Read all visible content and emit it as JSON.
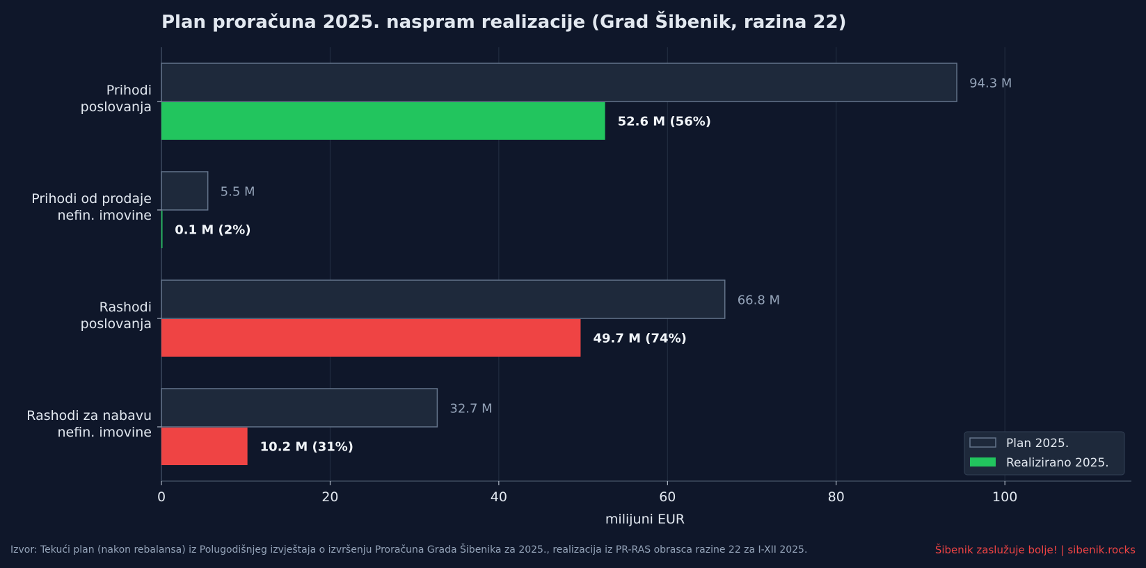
{
  "chart_data": {
    "type": "bar",
    "orientation": "horizontal",
    "title": "Plan proračuna 2025. naspram realizacije (Grad Šibenik, razina 22)",
    "xlabel": "milijuni EUR",
    "xlim": [
      0,
      115
    ],
    "xticks": [
      0,
      20,
      40,
      60,
      80,
      100
    ],
    "grid": "vertical",
    "legend_position": "bottom-right",
    "categories": [
      [
        "Prihodi",
        "poslovanja"
      ],
      [
        "Prihodi od prodaje",
        "nefin. imovine"
      ],
      [
        "Rashodi",
        "poslovanja"
      ],
      [
        "Rashodi za nabavu",
        "nefin. imovine"
      ]
    ],
    "series": [
      {
        "name": "Plan 2025.",
        "values": [
          94.3,
          5.5,
          66.8,
          32.7
        ],
        "labels": [
          "94.3 M",
          "5.5 M",
          "66.8 M",
          "32.7 M"
        ]
      },
      {
        "name": "Realizirano 2025.",
        "values": [
          52.6,
          0.1,
          49.7,
          10.2
        ],
        "labels": [
          "52.6 M  (56%)",
          "0.1 M  (2%)",
          "49.7 M  (74%)",
          "10.2 M  (31%)"
        ],
        "colors": [
          "#22c55e",
          "#22c55e",
          "#ef4444",
          "#ef4444"
        ]
      }
    ],
    "colors": {
      "background": "#0f172a",
      "plan_fill": "#1e293b",
      "plan_edge": "#64748b",
      "revenue": "#22c55e",
      "expense": "#ef4444",
      "grid": "#334155",
      "plan_label": "#94a3b8"
    }
  },
  "footer": {
    "source": "Izvor: Tekući plan (nakon rebalansa) iz Polugodišnjeg izvještaja o izvršenju Proračuna Grada Šibenika za 2025., realizacija iz PR-RAS obrasca razine 22 za I-XII 2025.",
    "brand": "Šibenik zaslužuje bolje!  |  sibenik.rocks"
  }
}
